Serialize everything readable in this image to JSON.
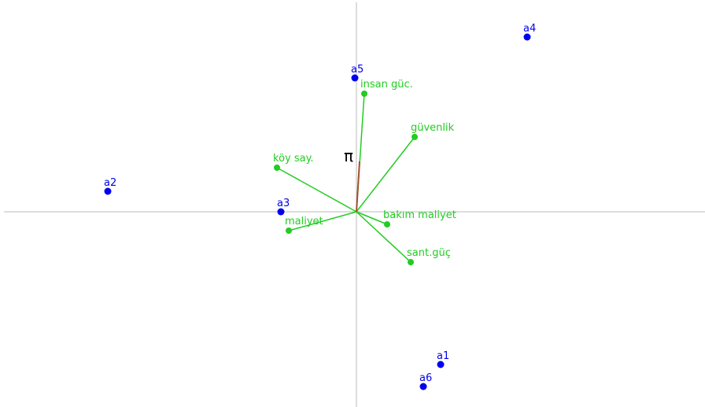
{
  "chart_data": {
    "type": "biplot",
    "xlim": [
      -4.48,
      4.43
    ],
    "ylim": [
      -2.48,
      2.66
    ],
    "points": {
      "color": "#0000ee",
      "labels": [
        "a1",
        "a2",
        "a3",
        "a4",
        "a5",
        "a6"
      ],
      "x": [
        1.07,
        -3.16,
        -0.96,
        2.17,
        -0.02,
        0.85
      ],
      "y": [
        -1.94,
        0.26,
        0.0,
        2.22,
        1.7,
        -2.22
      ]
    },
    "vectors": {
      "color": "#22cc22",
      "labels": [
        "insan güc.",
        "güvenlik",
        "köy say.",
        "maliyet",
        "bakım maliyet",
        "sant.güç"
      ],
      "x": [
        0.1,
        0.74,
        -1.01,
        -0.86,
        0.39,
        0.69
      ],
      "y": [
        1.5,
        0.95,
        0.56,
        -0.24,
        -0.16,
        -0.64
      ]
    },
    "pi_axis": {
      "label": "π",
      "color": "#a0522d",
      "x": 0.04,
      "y": 0.64
    }
  }
}
